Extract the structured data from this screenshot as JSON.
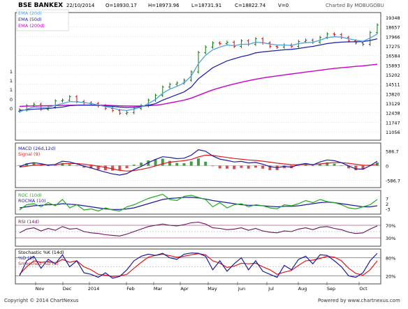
{
  "header": {
    "symbol": "BSE BANKEX",
    "date": "22/10/2014",
    "open": "O=18930.17",
    "high": "H=18973.96",
    "low": "L=18731.91",
    "close": "C=18822.74",
    "volume": "V=0",
    "charted_by": "Charted By MOBUGOBU"
  },
  "footer": {
    "copyright": "Copyright © 2014 ChartNexus",
    "powered_by": "Powered by www.chartnexus.com"
  },
  "colors": {
    "ema20": "#4aa3df",
    "ema50": "#2222aa",
    "ema200": "#cc00cc",
    "macd": "#1a1aa0",
    "signal": "#e01818",
    "roc": "#22aa22",
    "rocma": "#1a1aa0",
    "rsi": "#6a1060",
    "stoch_k": "#1a1aa0",
    "stoch_d": "#e01818",
    "up_bar": "#0a7a0a",
    "down_bar": "#cc1111",
    "panel_line": "#800040"
  },
  "chart_data": [
    {
      "type": "candlestick",
      "title": "BSE BANKEX",
      "legend": [
        "EMA (20d)",
        "EMA (50d)",
        "EMA (200d)"
      ],
      "x_tick_labels": [
        "Nov",
        "Dec",
        "2014",
        "Feb",
        "Mar",
        "Apr",
        "May",
        "Jun",
        "Jul",
        "Aug",
        "Sep",
        "Oct"
      ],
      "y_tick_labels": [
        "19348",
        "18657",
        "17966",
        "17275",
        "16584",
        "15893",
        "15202",
        "14511",
        "13820",
        "13129",
        "12438",
        "11747",
        "11056"
      ],
      "left_labels": [
        "1",
        "1",
        "1",
        "0",
        "0"
      ],
      "ylim": [
        10600,
        19500
      ],
      "close_series": [
        12650,
        12950,
        13050,
        12700,
        12850,
        13300,
        13350,
        13600,
        13250,
        13150,
        13100,
        12950,
        12750,
        12600,
        12400,
        12450,
        12750,
        12950,
        13350,
        13700,
        14300,
        14500,
        14600,
        14800,
        15400,
        16800,
        17200,
        17500,
        17450,
        17550,
        17250,
        17650,
        17400,
        17800,
        17500,
        17250,
        17200,
        17350,
        17250,
        17600,
        17700,
        17550,
        17900,
        18150,
        18100,
        17900,
        17650,
        17500,
        17400,
        18250,
        18800
      ],
      "ema20": [
        12500,
        12700,
        12850,
        12820,
        12830,
        12980,
        13100,
        13250,
        13230,
        13180,
        13100,
        13000,
        12880,
        12780,
        12650,
        12600,
        12700,
        12850,
        13100,
        13400,
        13850,
        14150,
        14350,
        14600,
        15100,
        16000,
        16600,
        17000,
        17200,
        17350,
        17300,
        17400,
        17400,
        17550,
        17520,
        17420,
        17350,
        17350,
        17320,
        17450,
        17520,
        17550,
        17700,
        17880,
        17950,
        17920,
        17800,
        17700,
        17620,
        17850,
        18150
      ],
      "ema50": [
        12600,
        12650,
        12700,
        12720,
        12750,
        12800,
        12850,
        12950,
        12980,
        12990,
        12990,
        12970,
        12940,
        12900,
        12850,
        12820,
        12830,
        12880,
        12980,
        13100,
        13350,
        13550,
        13750,
        13950,
        14300,
        14900,
        15300,
        15700,
        15950,
        16200,
        16350,
        16500,
        16620,
        16780,
        16850,
        16900,
        16950,
        17000,
        17030,
        17100,
        17180,
        17250,
        17350,
        17450,
        17520,
        17560,
        17580,
        17590,
        17600,
        17680,
        17800
      ],
      "ema200": [
        12900,
        12920,
        12930,
        12940,
        12950,
        12960,
        12970,
        12980,
        12985,
        12990,
        12990,
        12985,
        12975,
        12960,
        12940,
        12930,
        12925,
        12930,
        12950,
        12980,
        13050,
        13150,
        13250,
        13350,
        13500,
        13700,
        13900,
        14100,
        14250,
        14400,
        14530,
        14650,
        14760,
        14870,
        14960,
        15040,
        15110,
        15180,
        15250,
        15320,
        15390,
        15450,
        15520,
        15590,
        15650,
        15700,
        15750,
        15800,
        15840,
        15900,
        15950
      ]
    },
    {
      "type": "line",
      "title": "MACD (26d,12d)",
      "legend": [
        "MACD (26d,12d)",
        "Signal (9)"
      ],
      "y_tick_labels": [
        "586.7",
        "0",
        "-586.7"
      ],
      "ylim": [
        -800,
        800
      ],
      "macd": [
        -40,
        70,
        120,
        80,
        20,
        50,
        180,
        150,
        70,
        -20,
        -90,
        -180,
        -260,
        -330,
        -380,
        -320,
        -160,
        -30,
        120,
        250,
        360,
        330,
        280,
        300,
        420,
        640,
        580,
        390,
        260,
        210,
        150,
        170,
        110,
        130,
        60,
        -40,
        -80,
        -30,
        -60,
        40,
        90,
        30,
        150,
        230,
        200,
        120,
        -10,
        -130,
        -140,
        0,
        180
      ],
      "signal": [
        -60,
        -20,
        20,
        40,
        35,
        38,
        70,
        90,
        85,
        60,
        25,
        -20,
        -70,
        -130,
        -190,
        -220,
        -200,
        -150,
        -90,
        -10,
        80,
        140,
        170,
        200,
        250,
        350,
        420,
        410,
        370,
        330,
        290,
        260,
        230,
        210,
        180,
        140,
        100,
        70,
        40,
        40,
        50,
        45,
        70,
        100,
        120,
        120,
        95,
        55,
        20,
        15,
        50
      ]
    },
    {
      "type": "line",
      "title": "ROC (10d)",
      "legend": [
        "ROC (10d)",
        "ROCMA (10)"
      ],
      "y_tick_labels": [
        "7",
        "2",
        "-3"
      ],
      "ylim": [
        -6,
        12
      ],
      "roc": [
        -4,
        1,
        2,
        -1,
        3,
        0,
        6,
        -2,
        1,
        -4,
        -3,
        -5,
        -2,
        -4,
        -5,
        -1,
        1,
        4,
        7,
        9,
        11,
        6,
        5,
        9,
        10,
        8,
        6,
        -1,
        3,
        -2,
        1,
        2,
        -1,
        1,
        0,
        -2,
        -3,
        1,
        0,
        2,
        5,
        3,
        6,
        4,
        3,
        1,
        -2,
        -3,
        -1,
        1,
        6
      ],
      "rocma": [
        -2,
        -1,
        0,
        0.5,
        1,
        1,
        2,
        1.5,
        1,
        0,
        -1,
        -2,
        -3,
        -3.5,
        -3.5,
        -3,
        -2,
        0,
        2,
        4,
        6,
        7,
        7.5,
        8,
        8,
        7.5,
        6.5,
        5,
        4,
        3,
        2,
        1,
        0.5,
        0.5,
        0,
        -0.5,
        -1,
        -0.5,
        -0.5,
        0,
        1,
        2,
        3,
        3.5,
        3,
        2,
        1,
        0,
        -1,
        -1,
        0
      ]
    },
    {
      "type": "line",
      "title": "RSI (14d)",
      "legend": [
        "RSI (14d)"
      ],
      "y_tick_labels": [
        "70%",
        "30%"
      ],
      "ylim": [
        10,
        90
      ],
      "rsi": [
        46,
        58,
        62,
        52,
        60,
        54,
        66,
        58,
        60,
        50,
        46,
        44,
        40,
        38,
        36,
        42,
        50,
        58,
        66,
        70,
        74,
        70,
        68,
        72,
        78,
        80,
        74,
        62,
        60,
        56,
        58,
        62,
        54,
        60,
        52,
        48,
        46,
        52,
        50,
        58,
        62,
        56,
        64,
        66,
        60,
        56,
        48,
        44,
        46,
        58,
        68
      ]
    },
    {
      "type": "line",
      "title": "Stochastic %K (14d)",
      "legend": [
        "Stochastic %K (14d)",
        "%D (3)",
        "Smoothed %D (3)"
      ],
      "y_tick_labels": [
        "80%",
        "20%"
      ],
      "ylim": [
        0,
        100
      ],
      "k": [
        20,
        70,
        85,
        45,
        75,
        60,
        90,
        50,
        70,
        30,
        25,
        15,
        30,
        12,
        18,
        40,
        70,
        85,
        92,
        88,
        95,
        80,
        75,
        92,
        96,
        95,
        85,
        40,
        70,
        35,
        60,
        80,
        40,
        70,
        35,
        25,
        15,
        55,
        40,
        75,
        85,
        60,
        90,
        88,
        70,
        50,
        20,
        15,
        30,
        70,
        95
      ],
      "d": [
        25,
        50,
        70,
        65,
        68,
        62,
        75,
        65,
        70,
        50,
        40,
        25,
        22,
        18,
        20,
        25,
        45,
        65,
        82,
        88,
        92,
        87,
        82,
        85,
        90,
        94,
        90,
        70,
        62,
        48,
        52,
        62,
        60,
        62,
        50,
        40,
        25,
        32,
        38,
        55,
        70,
        72,
        78,
        85,
        82,
        70,
        45,
        28,
        22,
        40,
        70
      ]
    }
  ]
}
